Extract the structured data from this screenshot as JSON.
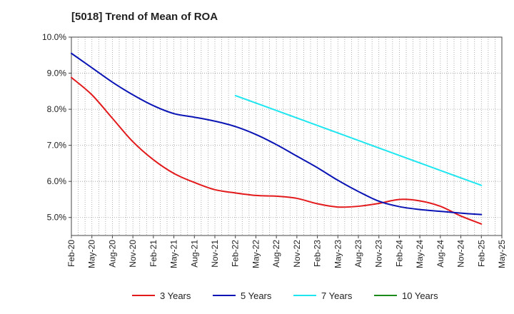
{
  "chart_data": {
    "type": "line",
    "title": "[5018]  Trend of Mean of ROA",
    "xlabel": "",
    "ylabel": "",
    "ylim": [
      4.5,
      10.0
    ],
    "yticks": [
      5.0,
      6.0,
      7.0,
      8.0,
      9.0,
      10.0
    ],
    "ytick_labels": [
      "5.0%",
      "6.0%",
      "7.0%",
      "8.0%",
      "9.0%",
      "10.0%"
    ],
    "x_tick_labels": [
      "Feb-20",
      "May-20",
      "Aug-20",
      "Nov-20",
      "Feb-21",
      "May-21",
      "Aug-21",
      "Nov-21",
      "Feb-22",
      "May-22",
      "Aug-22",
      "Nov-22",
      "Feb-23",
      "May-23",
      "Aug-23",
      "Nov-23",
      "Feb-24",
      "May-24",
      "Aug-24",
      "Nov-24",
      "Feb-25",
      "May-25"
    ],
    "x_range_months": [
      0,
      63
    ],
    "grid": true,
    "legend_position": "bottom",
    "series": [
      {
        "name": "3 Years",
        "color": "#e31a1c",
        "x_months": [
          0,
          3,
          6,
          9,
          12,
          15,
          18,
          21,
          24,
          27,
          30,
          33,
          36,
          39,
          42,
          45,
          48,
          51,
          54,
          57,
          60
        ],
        "values": [
          8.88,
          8.4,
          7.75,
          7.1,
          6.6,
          6.22,
          5.97,
          5.77,
          5.68,
          5.61,
          5.59,
          5.53,
          5.38,
          5.29,
          5.31,
          5.39,
          5.5,
          5.46,
          5.31,
          5.04,
          4.82
        ]
      },
      {
        "name": "5 Years",
        "color": "#0a14b4",
        "x_months": [
          0,
          3,
          6,
          9,
          12,
          15,
          18,
          21,
          24,
          27,
          30,
          33,
          36,
          39,
          42,
          45,
          48,
          51,
          54,
          57,
          60
        ],
        "values": [
          9.55,
          9.15,
          8.75,
          8.4,
          8.1,
          7.88,
          7.78,
          7.67,
          7.52,
          7.3,
          7.02,
          6.7,
          6.38,
          6.03,
          5.72,
          5.45,
          5.3,
          5.22,
          5.17,
          5.12,
          5.08
        ]
      },
      {
        "name": "7 Years",
        "color": "#1ee6f0",
        "x_months": [
          24,
          60
        ],
        "values": [
          8.38,
          5.89
        ]
      },
      {
        "name": "10 Years",
        "color": "#1a8a1a",
        "x_months": [],
        "values": []
      }
    ]
  }
}
